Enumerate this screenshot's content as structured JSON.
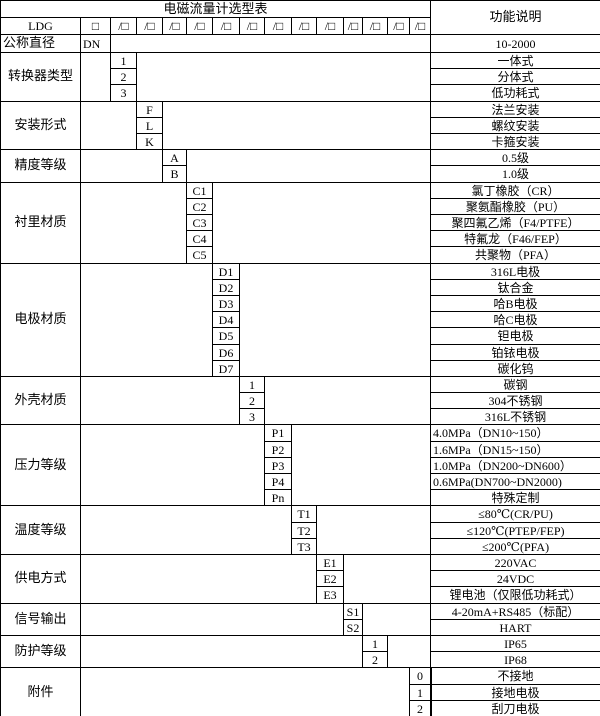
{
  "header": {
    "title": "电磁流量计选型表",
    "function_heading": "功能说明",
    "model_prefix": "LDG",
    "first_slot": "□",
    "slot": "/□",
    "slot_count": 13
  },
  "nominal_diameter": {
    "label": "公称直径",
    "code": "DN",
    "description": "10-2000"
  },
  "sections": [
    {
      "label": "转换器类型",
      "codes": [
        "1",
        "2",
        "3"
      ],
      "descriptions": [
        "一体式",
        "分体式",
        "低功耗式"
      ]
    },
    {
      "label": "安装形式",
      "codes": [
        "F",
        "L",
        "K"
      ],
      "descriptions": [
        "法兰安装",
        "螺纹安装",
        "卡箍安装"
      ]
    },
    {
      "label": "精度等级",
      "codes": [
        "A",
        "B"
      ],
      "descriptions": [
        "0.5级",
        "1.0级"
      ]
    },
    {
      "label": "衬里材质",
      "codes": [
        "C1",
        "C2",
        "C3",
        "C4",
        "C5"
      ],
      "descriptions": [
        "氯丁橡胶（CR）",
        "聚氨酯橡胶（PU）",
        "聚四氟乙烯（F4/PTFE）",
        "特氟龙（F46/FEP）",
        "共聚物（PFA）"
      ]
    },
    {
      "label": "电极材质",
      "codes": [
        "D1",
        "D2",
        "D3",
        "D4",
        "D5",
        "D6",
        "D7"
      ],
      "descriptions": [
        "316L电极",
        "钛合金",
        "哈B电极",
        "哈C电极",
        "钽电极",
        "铂铱电极",
        "碳化钨"
      ]
    },
    {
      "label": "外壳材质",
      "codes": [
        "1",
        "2",
        "3"
      ],
      "descriptions": [
        "碳钢",
        "304不锈钢",
        "316L不锈钢"
      ]
    },
    {
      "label": "压力等级",
      "codes": [
        "P1",
        "P2",
        "P3",
        "P4",
        "Pn"
      ],
      "descriptions": [
        "4.0MPa（DN10~150）",
        "1.6MPa（DN15~150）",
        "1.0MPa（DN200~DN600）",
        "0.6MPa(DN700~DN2000)",
        "特殊定制"
      ]
    },
    {
      "label": "温度等级",
      "codes": [
        "T1",
        "T2",
        "T3"
      ],
      "descriptions": [
        "≤80℃(CR/PU)",
        "≤120℃(PTEP/FEP)",
        "≤200℃(PFA)"
      ]
    },
    {
      "label": "供电方式",
      "codes": [
        "E1",
        "E2",
        "E3"
      ],
      "descriptions": [
        "220VAC",
        "24VDC",
        "锂电池（仅限低功耗式）"
      ]
    },
    {
      "label": "信号输出",
      "codes": [
        "S1",
        "S2"
      ],
      "descriptions": [
        "4-20mA+RS485（标配）",
        "HART"
      ]
    },
    {
      "label": "防护等级",
      "codes": [
        "1",
        "2"
      ],
      "descriptions": [
        "IP65",
        "IP68"
      ]
    },
    {
      "label": "附件",
      "codes": [
        "0",
        "1",
        "2"
      ],
      "descriptions": [
        "不接地",
        "接地电极",
        "刮刀电极"
      ]
    }
  ]
}
